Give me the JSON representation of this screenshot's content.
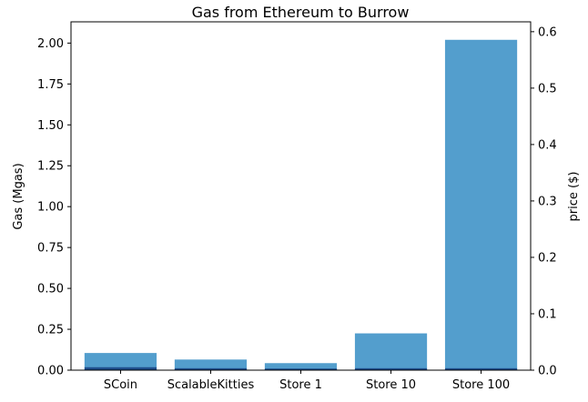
{
  "chart_data": {
    "type": "bar",
    "title": "Gas from Ethereum to Burrow",
    "categories": [
      "SCoin",
      "ScalableKitties",
      "Store 1",
      "Store 10",
      "Store 100"
    ],
    "series": [
      {
        "values": [
          0.105,
          0.065,
          0.043,
          0.225,
          2.02
        ],
        "color": "#539ecd"
      },
      {
        "values": [
          0.018,
          0.012,
          0.01,
          0.012,
          0.012
        ],
        "color": "#1f4e8c"
      }
    ],
    "ylabel": "Gas (Mgas)",
    "ylim": [
      0,
      2.13
    ],
    "yticks": [
      "0.00",
      "0.25",
      "0.50",
      "0.75",
      "1.00",
      "1.25",
      "1.50",
      "1.75",
      "2.00"
    ],
    "y2label": "price ($)",
    "y2lim": [
      0,
      0.6175
    ],
    "y2ticks": [
      "0.0",
      "0.1",
      "0.2",
      "0.3",
      "0.4",
      "0.5",
      "0.6"
    ],
    "grid": false,
    "legend": "none"
  }
}
